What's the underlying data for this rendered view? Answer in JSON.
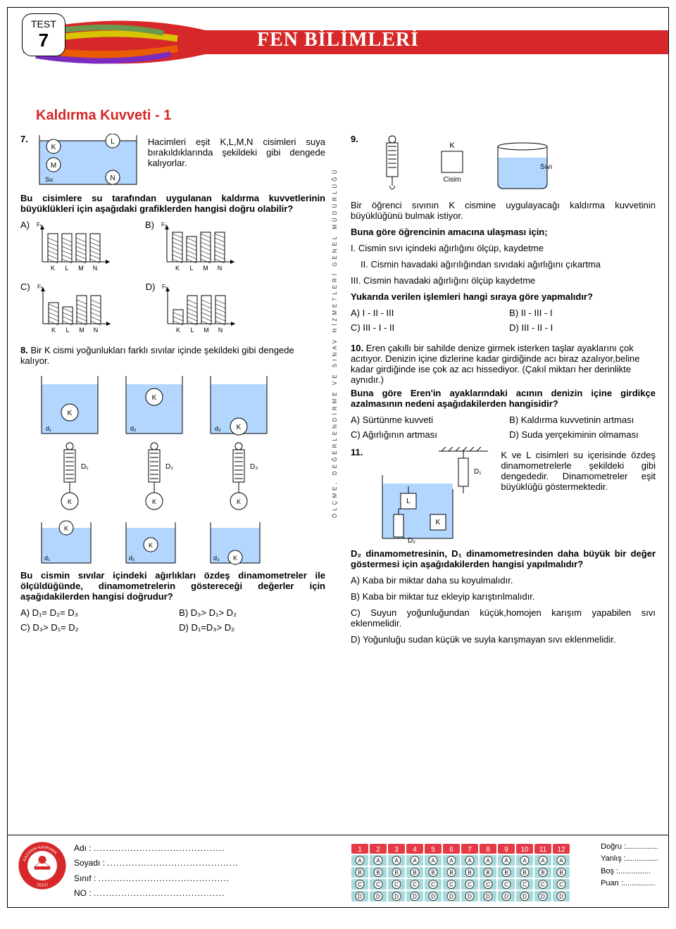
{
  "test_label": "TEST",
  "test_number": "7",
  "title": "FEN BİLİMLERİ",
  "topic": "Kaldırma Kuvveti - 1",
  "divider_text": "ÖLÇME, DEĞERLENDİRME VE SINAV HİZMETLERİ GENEL MÜDÜRLÜĞÜ",
  "colors": {
    "banner_red": "#d62828",
    "banner_orange": "#e85d04",
    "banner_yellow": "#d8c400",
    "banner_green": "#6a994e",
    "banner_purple": "#7b2cbf",
    "water": "#b3d6ff",
    "bubble_header": "#e63946",
    "bubble_bg": "#a8dadc"
  },
  "q7": {
    "num": "7.",
    "fig_labels": {
      "K": "K",
      "L": "L",
      "M": "M",
      "N": "N",
      "Su": "Su"
    },
    "intro": "Hacimleri eşit K,L,M,N cisimleri suya bırakıldıklarında şekildeki gibi dengede kalıyorlar.",
    "question": "Bu cisimlere su tarafından uygulanan kaldırma kuvvetlerinin büyüklükleri için aşağıdaki grafiklerden hangisi doğru olabilir?",
    "charts": {
      "A": {
        "label": "A)",
        "y": "Fₖ",
        "bars": [
          "K",
          "L",
          "M",
          "N"
        ],
        "heights": [
          40,
          40,
          40,
          40
        ]
      },
      "B": {
        "label": "B)",
        "y": "Fₖ",
        "bars": [
          "K",
          "L",
          "M",
          "N"
        ],
        "heights": [
          42,
          36,
          42,
          42
        ]
      },
      "C": {
        "label": "C)",
        "y": "Fₖ",
        "bars": [
          "K",
          "L",
          "M",
          "N"
        ],
        "heights": [
          30,
          24,
          40,
          40
        ]
      },
      "D": {
        "label": "D)",
        "y": "Fₖ",
        "bars": [
          "K",
          "L",
          "M",
          "N"
        ],
        "heights": [
          20,
          40,
          40,
          40
        ]
      }
    }
  },
  "q8": {
    "num": "8.",
    "intro": "Bir K cismi yoğunlukları farklı sıvılar içinde şekildeki gibi dengede kalıyor.",
    "labels": {
      "K": "K",
      "d1": "d₁",
      "d2": "d₂",
      "d3": "d₃",
      "D1": "D₁",
      "D2": "D₂",
      "D3": "D₃"
    },
    "question": "Bu cismin sıvılar içindeki ağırlıkları özdeş dinamometreler ile ölçüldüğünde, dinamometrelerin göstereceği değerler için aşağıdakilerden hangisi doğrudur?",
    "opts": {
      "A": "A) D₁= D₂= D₃",
      "B": "B) D₃> D₁> D₂",
      "C": "C) D₃> D₁= D₂",
      "D": "D) D₁=D₃> D₂"
    }
  },
  "q9": {
    "num": "9.",
    "fig": {
      "K": "K",
      "Cisim": "Cisim",
      "Sivi": "Sıvı"
    },
    "intro": "Bir öğrenci sıvının K cismine uygulayacağı kaldırma kuvvetinin büyüklüğünü bulmak istiyor.",
    "bold": "Buna göre öğrencinin amacına ulaşması için;",
    "i": "I.  Cismin sıvı içindeki ağırlığını ölçüp, kaydetme",
    "ii": "II. Cismin havadaki ağırılığından sıvıdaki ağırlığını çıkartma",
    "iii": "III. Cismin havadaki ağırlığını ölçüp kaydetme",
    "q": "Yukarıda verilen işlemleri hangi sıraya göre yapmalıdır?",
    "opts": {
      "A": "A) I - II - III",
      "B": "B) II - III - I",
      "C": "C) III - I - II",
      "D": "D) III - II - I"
    }
  },
  "q10": {
    "num": "10.",
    "intro": "Eren çakıllı bir sahilde denize girmek isterken taşlar ayaklarını çok acıtıyor. Denizin içine dizlerine kadar girdiğinde acı biraz azalıyor,beline kadar girdiğinde ise çok az acı hissediyor. (Çakıl miktarı her derinlikte aynıdır.)",
    "q": "Buna göre Eren'in ayaklarındaki acının denizin içine girdikçe azalmasının nedeni aşağıdakilerden hangisidir?",
    "opts": {
      "A": "A) Sürtünme kuvveti",
      "B": "B) Kaldırma kuvvetinin artması",
      "C": "C) Ağırlığının artması",
      "D": "D) Suda yerçekiminin olmaması"
    }
  },
  "q11": {
    "num": "11.",
    "fig": {
      "D1": "D₁",
      "D2": "D₂",
      "K": "K",
      "L": "L"
    },
    "intro": "K ve L cisimleri su içerisinde özdeş dinamometrelerle şekildeki gibi dengededir. Dinamometreler eşit büyüklüğü göstermektedir.",
    "q": "D₂ dinamometresinin, D₁ dinamometresinden daha büyük bir değer göstermesi için aşağıdakilerden hangisi yapılmalıdır?",
    "opts": {
      "A": "A) Kaba bir miktar daha su koyulmalıdır.",
      "B": "B) Kaba bir miktar tuz ekleyip karıştırılmalıdır.",
      "C": "C) Suyun yoğunluğundan küçük,homojen karışım yapabilen sıvı eklenmelidir.",
      "D": "D) Yoğunluğu sudan küçük ve suyla karışmayan sıvı eklenmelidir."
    }
  },
  "footer": {
    "fields": {
      "adi": "Adı :",
      "soyadi": "Soyadı :",
      "sinif": "Sınıf :",
      "no": "NO :"
    },
    "dots": "...........................................",
    "cols": [
      "1",
      "2",
      "3",
      "4",
      "5",
      "6",
      "7",
      "8",
      "9",
      "10",
      "11",
      "12"
    ],
    "rows": [
      "A",
      "B",
      "C",
      "D"
    ],
    "score": {
      "d": "Doğru :...............",
      "y": "Yanlış :...............",
      "b": "Boş   :...............",
      "p": "Puan  :..............."
    },
    "seal_outer": "KAZANIM KAVRAMA TESTİ"
  }
}
